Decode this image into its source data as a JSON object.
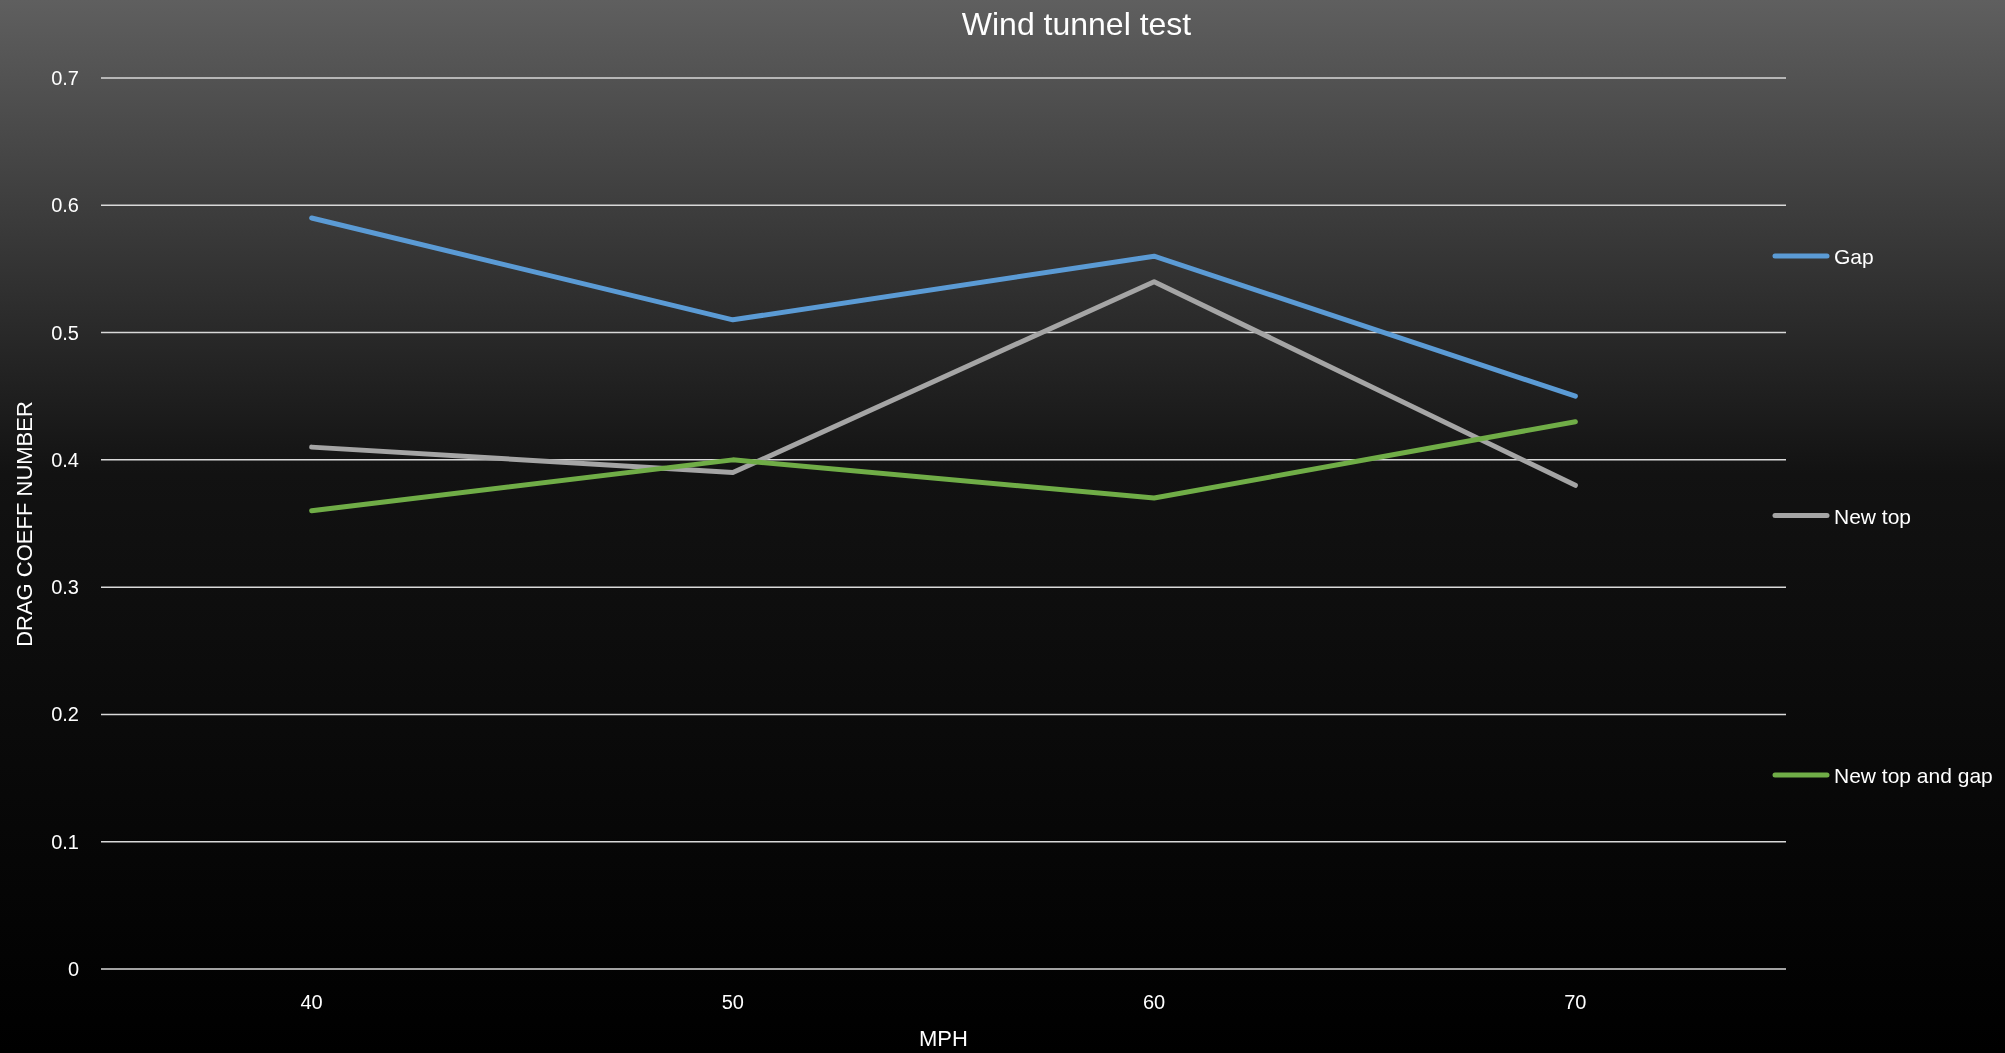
{
  "chart_data": {
    "type": "line",
    "title": "Wind tunnel test",
    "xlabel": "MPH",
    "ylabel": "DRAG COEFF NUMBER",
    "categories": [
      "40",
      "50",
      "60",
      "70"
    ],
    "series": [
      {
        "name": "Gap",
        "color": "#5b9bd5",
        "values": [
          0.59,
          0.51,
          0.56,
          0.45
        ]
      },
      {
        "name": "New top",
        "color": "#a5a5a5",
        "values": [
          0.41,
          0.39,
          0.54,
          0.38
        ]
      },
      {
        "name": "New top and gap",
        "color": "#70ad47",
        "values": [
          0.36,
          0.4,
          0.37,
          0.43
        ]
      }
    ],
    "ylim": [
      0,
      0.7
    ],
    "yticks": [
      0,
      0.1,
      0.2,
      0.3,
      0.4,
      0.5,
      0.6,
      0.7
    ],
    "grid": "y",
    "legend": "right"
  }
}
